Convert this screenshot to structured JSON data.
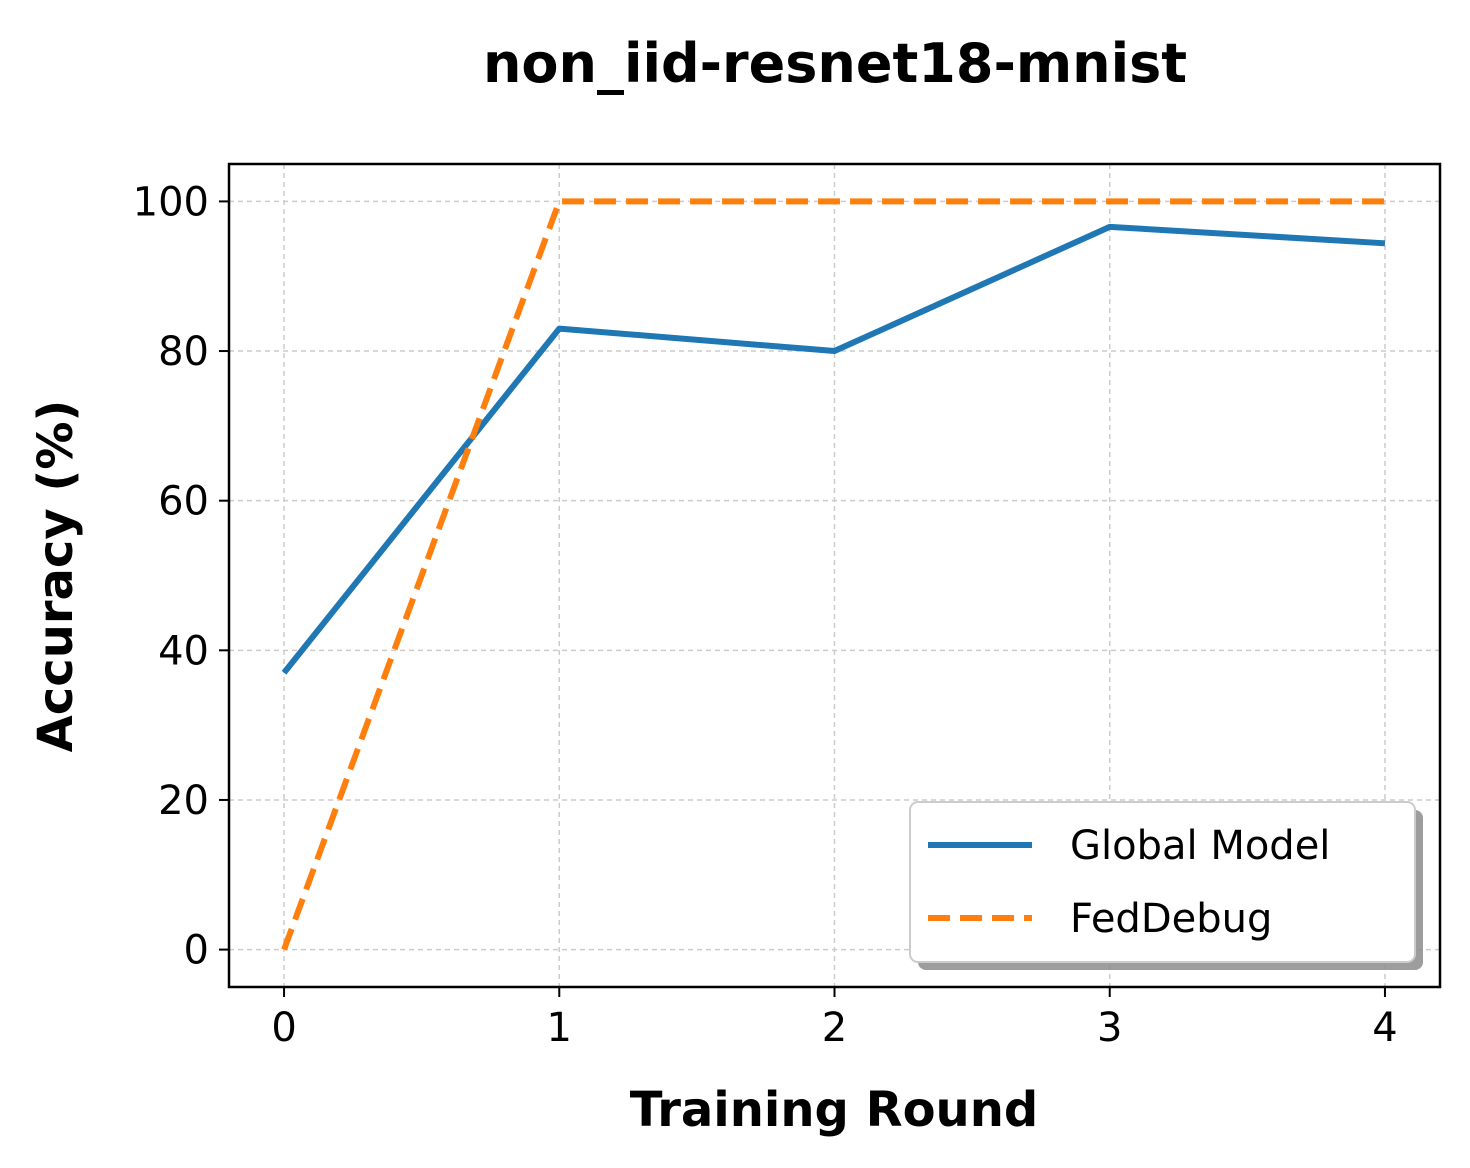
{
  "chart_data": {
    "type": "line",
    "title": "non_iid-resnet18-mnist",
    "xlabel": "Training Round",
    "ylabel": "Accuracy (%)",
    "x": [
      0,
      1,
      2,
      3,
      4
    ],
    "xticks": [
      "0",
      "1",
      "2",
      "3",
      "4"
    ],
    "yticks": [
      "0",
      "20",
      "40",
      "60",
      "80",
      "100"
    ],
    "xlim": [
      -0.2,
      4.2
    ],
    "ylim": [
      -5,
      105
    ],
    "grid": true,
    "legend_position": "bottom-right",
    "series": [
      {
        "name": "Global Model",
        "values": [
          37,
          83,
          80,
          96.6,
          94.4
        ],
        "color": "#1f77b4",
        "style": "solid"
      },
      {
        "name": "FedDebug",
        "values": [
          0,
          100,
          100,
          100,
          100
        ],
        "color": "#ff7f0e",
        "style": "dashed"
      }
    ]
  }
}
